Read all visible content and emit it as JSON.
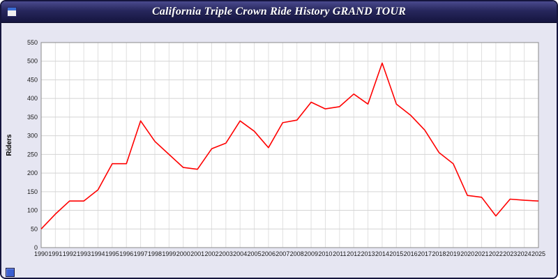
{
  "window": {
    "title": "California Triple Crown Ride History GRAND TOUR",
    "title_bar_icon": "window-icon",
    "corner_icon": "blue-square-handle"
  },
  "colors": {
    "line": "#ff0000",
    "panel_bg": "#e6e6f2",
    "plot_bg": "#ffffff",
    "grid": "#d4d4d4",
    "axis": "#8a8a8a",
    "title_bar": "#15153f",
    "tick_text": "#1a1a1a"
  },
  "chart_data": {
    "type": "line",
    "title": "California Triple Crown Ride History GRAND TOUR",
    "xlabel": "",
    "ylabel": "Riders",
    "x": [
      1990,
      1991,
      1992,
      1993,
      1994,
      1995,
      1996,
      1997,
      1998,
      1999,
      2000,
      2001,
      2002,
      2003,
      2004,
      2005,
      2006,
      2007,
      2008,
      2009,
      2010,
      2011,
      2012,
      2013,
      2014,
      2015,
      2016,
      2017,
      2018,
      2019,
      2020,
      2021,
      2022,
      2023,
      2024,
      2025
    ],
    "series": [
      {
        "name": "Riders",
        "color": "#ff0000",
        "values": [
          50,
          90,
          125,
          125,
          155,
          225,
          225,
          340,
          285,
          250,
          215,
          210,
          265,
          280,
          340,
          312,
          268,
          335,
          342,
          390,
          372,
          378,
          412,
          385,
          495,
          385,
          355,
          315,
          255,
          225,
          140,
          135,
          85,
          130,
          127,
          125
        ]
      }
    ],
    "ylim": [
      0,
      550
    ],
    "ytick_step": 50,
    "grid": true,
    "legend": "none"
  }
}
